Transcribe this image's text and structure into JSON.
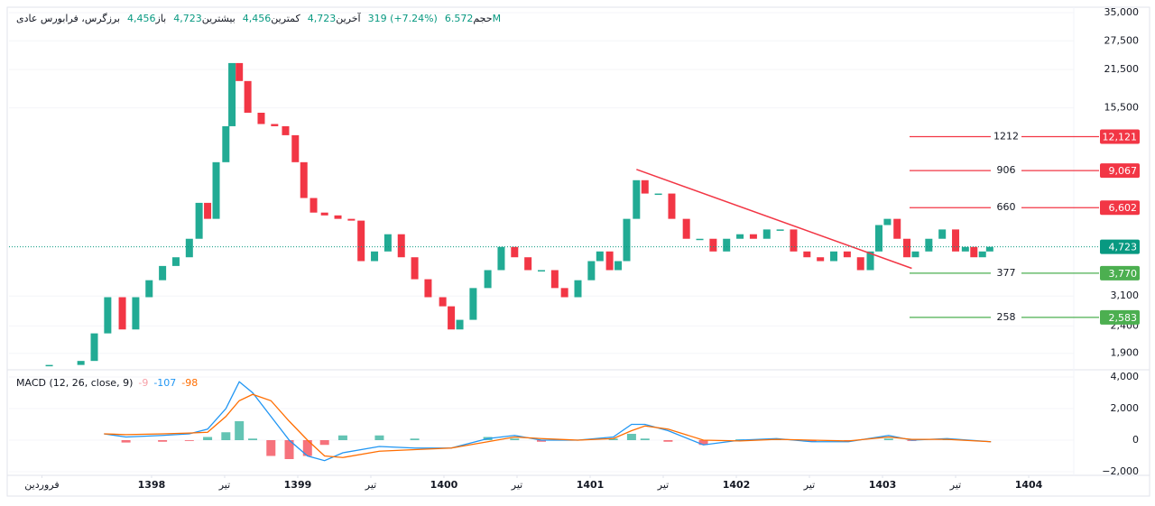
{
  "chart_data": [
    {
      "type": "candle",
      "title": "برزگرس، فرابورس عادی",
      "stats": [
        {
          "label": "باز",
          "value": "4,456"
        },
        {
          "label": "بیشترین",
          "value": "4,723"
        },
        {
          "label": "کمترین",
          "value": "4,456"
        },
        {
          "label": "آخرین",
          "value": "4,723"
        },
        {
          "value": "319 (+7.24%)"
        },
        {
          "label": "حجم",
          "value": "6.572M"
        }
      ],
      "x": [
        3.6,
        6.2,
        7.3,
        8.4,
        9.6,
        10.7,
        11.8,
        12.9,
        14.0,
        15.1,
        15.9,
        16.6,
        17.3,
        18.1,
        18.6,
        19.2,
        19.9,
        21.0,
        22.1,
        23.0,
        23.8,
        24.5,
        25.3,
        26.2,
        27.3,
        28.4,
        29.2,
        30.3,
        31.4,
        32.5,
        33.6,
        34.7,
        35.9,
        36.6,
        37.3,
        38.4,
        39.6,
        40.7,
        41.8,
        42.9,
        44.0,
        45.1,
        45.9,
        47.0,
        48.1,
        48.8,
        49.6,
        50.3,
        51.0,
        51.8,
        52.5,
        53.6,
        54.7,
        55.9,
        57.0,
        58.1,
        59.2,
        60.3,
        61.4,
        62.5,
        63.6,
        64.7,
        65.8,
        66.9,
        68.0,
        69.1,
        70.2,
        71.0,
        71.7,
        72.4,
        73.2,
        74.0,
        74.7,
        75.8,
        76.9,
        78.0,
        78.8,
        79.5,
        80.2,
        80.8
      ],
      "series": [
        {
          "values": [
            1720,
            1780,
            2253,
            3070,
            2330,
            3070,
            3550,
            4010,
            4320,
            5060,
            6880,
            6000,
            9740,
            13250,
            22740,
            19500,
            14870,
            13500,
            13250,
            12270,
            9740,
            7170,
            6330,
            6180,
            6000,
            5910,
            4180,
            4540,
            5260,
            4320,
            3580,
            3070,
            2840,
            2330,
            2530,
            3320,
            3870,
            4720,
            4320,
            3870,
            3870,
            3320,
            3070,
            3550,
            4180,
            4540,
            3870,
            4180,
            6000,
            8350,
            7450,
            7450,
            6000,
            5060,
            5060,
            4540,
            5060,
            5260,
            5060,
            5480,
            5480,
            4540,
            4320,
            4180,
            4540,
            4320,
            3870,
            4540,
            5690,
            6000,
            5060,
            4320,
            4540,
            5060,
            5480,
            4540,
            4720,
            4320,
            4540,
            4723
          ]
        }
      ],
      "up_color": "#22ab94",
      "down_color": "#f23645",
      "log_scale": true,
      "xlim": [
        0.3,
        87.7
      ],
      "ylim": [
        1650,
        36100
      ],
      "yticks": [
        {
          "value": 35000,
          "label": "35,000"
        },
        {
          "value": 27500,
          "label": "27,500"
        },
        {
          "value": 21500,
          "label": "21,500"
        },
        {
          "value": 15500,
          "label": "15,500"
        },
        {
          "value": 3100,
          "label": "3,100"
        },
        {
          "value": 2400,
          "label": "2,400"
        },
        {
          "value": 1900,
          "label": "1,900"
        }
      ],
      "xticks": [
        {
          "value": 3,
          "label": "فروردین"
        },
        {
          "value": 12,
          "label": "1398"
        },
        {
          "value": 18,
          "label": "تیر"
        },
        {
          "value": 24,
          "label": "1399"
        },
        {
          "value": 30,
          "label": "تیر"
        },
        {
          "value": 36,
          "label": "1400"
        },
        {
          "value": 42,
          "label": "تیر"
        },
        {
          "value": 48,
          "label": "1401"
        },
        {
          "value": 54,
          "label": "تیر"
        },
        {
          "value": 60,
          "label": "1402"
        },
        {
          "value": 66,
          "label": "تیر"
        },
        {
          "value": 72,
          "label": "1403"
        },
        {
          "value": 78,
          "label": "تیر"
        },
        {
          "value": 84,
          "label": "1404"
        }
      ],
      "trendline": {
        "x": [
          51.8,
          74.4
        ],
        "y": [
          9160,
          3930
        ],
        "color": "#f23645"
      },
      "levels": [
        {
          "label": "1212",
          "value": 12121,
          "value_label": "12,121",
          "color": "#f23645"
        },
        {
          "label": "906",
          "value": 9067,
          "value_label": "9,067",
          "color": "#f23645"
        },
        {
          "label": "660",
          "value": 6602,
          "value_label": "6,602",
          "color": "#f23645"
        },
        {
          "label": "377",
          "value": 3770,
          "value_label": "3,770",
          "color": "#4caf50"
        },
        {
          "label": "258",
          "value": 2583,
          "value_label": "2,583",
          "color": "#4caf50"
        }
      ],
      "last": {
        "value": 4723,
        "value_label": "4,723",
        "color": "#089981"
      }
    },
    {
      "type": "macd",
      "title": "MACD (12, 26, close, 9)",
      "x": [
        8.1,
        9.9,
        12.9,
        15.1,
        16.6,
        18.1,
        19.2,
        20.3,
        21.8,
        23.3,
        24.8,
        26.2,
        27.7,
        30.7,
        33.6,
        36.6,
        39.6,
        41.8,
        44.0,
        47.0,
        49.9,
        51.4,
        52.5,
        54.4,
        57.3,
        60.3,
        63.3,
        66.2,
        69.2,
        72.5,
        74.4,
        77.3,
        80.9
      ],
      "series": [
        {
          "kind": "histogram",
          "last": -9,
          "color": "#f7a1a8",
          "up_color": "#22ab94",
          "down_color": "#f23645",
          "values": [
            0,
            -150,
            -100,
            -50,
            200,
            500,
            1200,
            100,
            -1000,
            -1200,
            -1000,
            -300,
            300,
            300,
            100,
            0,
            200,
            100,
            -100,
            0,
            100,
            400,
            100,
            -100,
            -300,
            50,
            50,
            -100,
            -50,
            100,
            -50,
            50,
            0
          ]
        },
        {
          "kind": "line",
          "last": -107,
          "color": "#2196f3",
          "values": [
            400,
            200,
            300,
            400,
            700,
            2000,
            3700,
            3000,
            1500,
            0,
            -1000,
            -1300,
            -800,
            -400,
            -500,
            -500,
            100,
            300,
            0,
            0,
            200,
            1000,
            1000,
            600,
            -300,
            0,
            100,
            -100,
            -100,
            300,
            0,
            100,
            -100
          ]
        },
        {
          "kind": "line",
          "last": -98,
          "color": "#ff6d00",
          "values": [
            400,
            350,
            400,
            450,
            500,
            1500,
            2500,
            2900,
            2500,
            1200,
            0,
            -1000,
            -1100,
            -700,
            -600,
            -500,
            -100,
            200,
            100,
            0,
            100,
            600,
            900,
            700,
            0,
            -50,
            50,
            0,
            -50,
            200,
            50,
            50,
            -100
          ]
        }
      ],
      "ylim": [
        -2229,
        4343
      ],
      "yticks": [
        {
          "value": 4000,
          "label": "4,000"
        },
        {
          "value": 2000,
          "label": "2,000"
        },
        0,
        {
          "value": -2000,
          "label": "−2,000"
        }
      ]
    }
  ]
}
